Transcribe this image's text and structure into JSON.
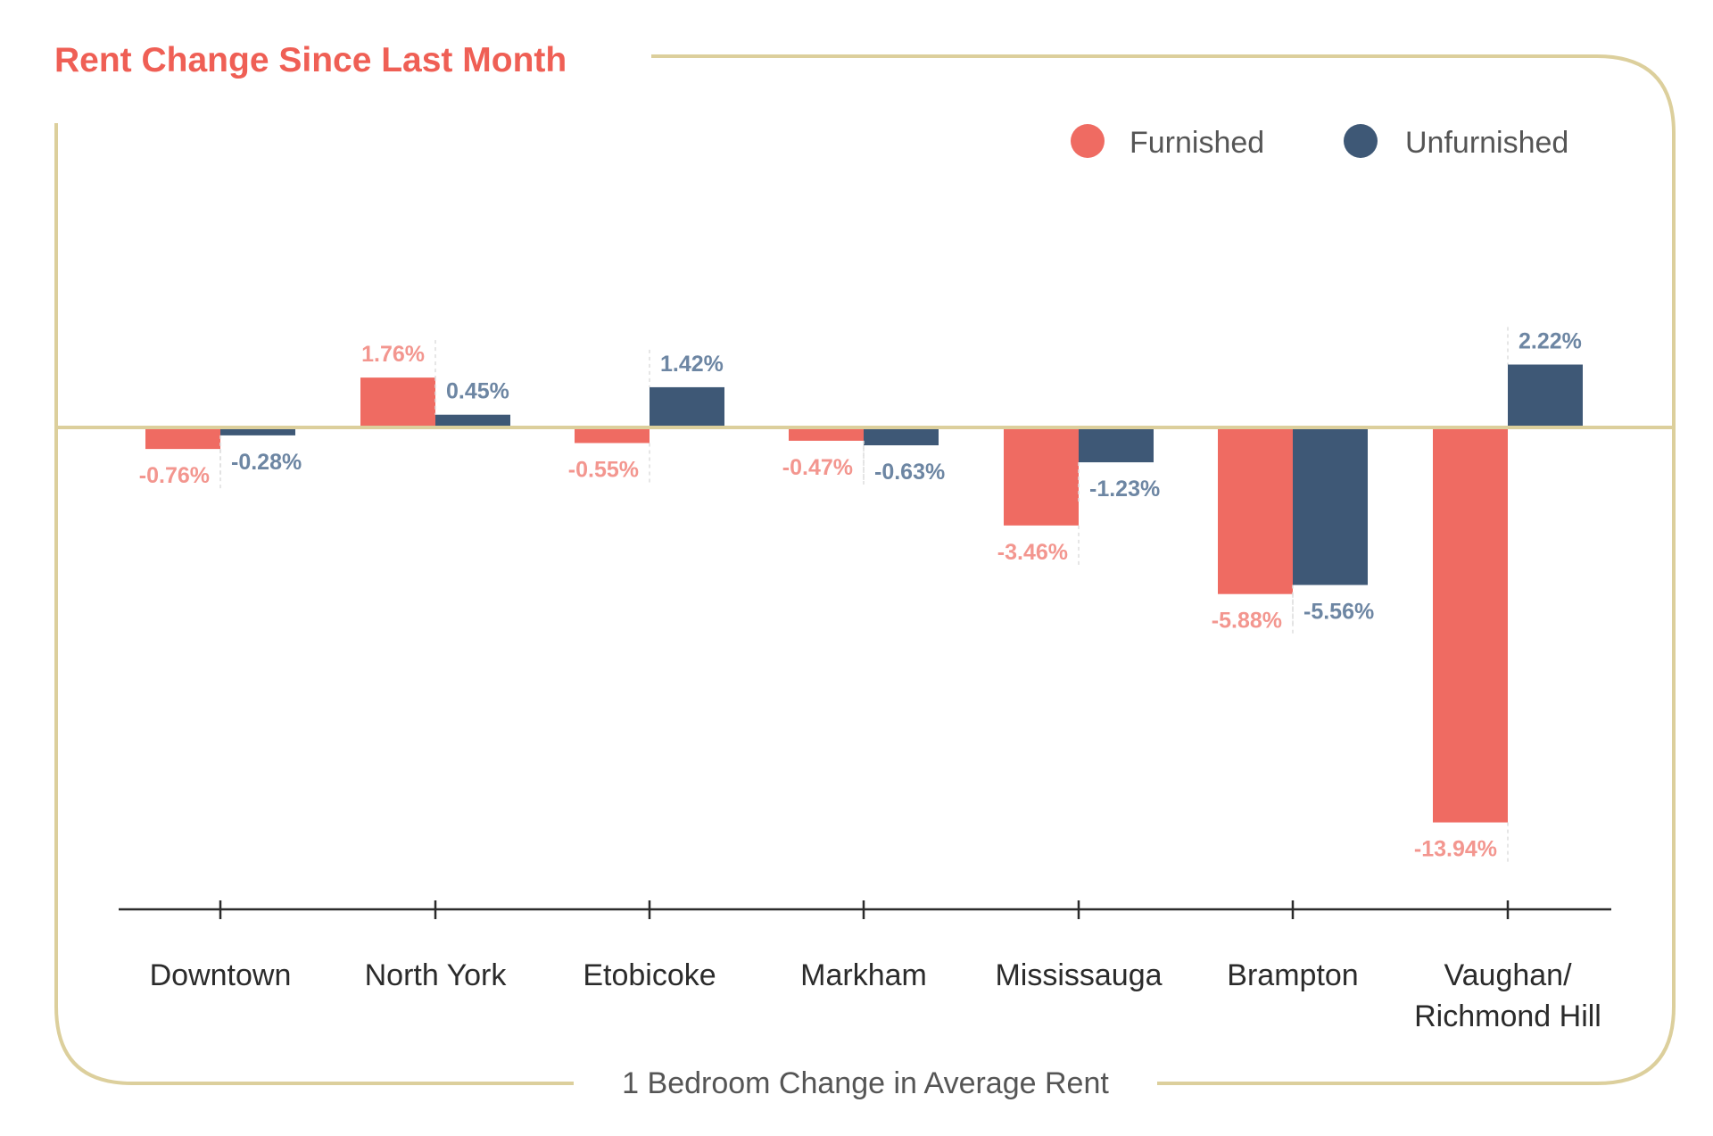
{
  "colors": {
    "furnished": "#ef6b62",
    "unfurnished": "#3e5876",
    "furnished_label": "#f3968f",
    "unfurnished_label": "#6d86a3",
    "frame": "#dccf9c",
    "title": "#ef5f55",
    "axis": "#2b2b2b"
  },
  "chart_data": {
    "type": "bar",
    "title": "Rent Change Since Last Month",
    "xlabel": "1 Bedroom Change in Average Rent",
    "ylabel": "",
    "legend_position": "top-right",
    "grid": false,
    "ylim": [
      -14.7,
      5.0
    ],
    "categories": [
      [
        "Downtown"
      ],
      [
        "North York"
      ],
      [
        "Etobicoke"
      ],
      [
        "Markham"
      ],
      [
        "Mississauga"
      ],
      [
        "Brampton"
      ],
      [
        "Vaughan/",
        "Richmond Hill"
      ]
    ],
    "series": [
      {
        "name": "Furnished",
        "values": [
          -0.76,
          1.76,
          -0.55,
          -0.47,
          -3.46,
          -5.88,
          -13.94
        ],
        "labels": [
          "-0.76%",
          "1.76%",
          "-0.55%",
          "-0.47%",
          "-3.46%",
          "-5.88%",
          "-13.94%"
        ]
      },
      {
        "name": "Unfurnished",
        "values": [
          -0.28,
          0.45,
          1.42,
          -0.63,
          -1.23,
          -5.56,
          2.22
        ],
        "labels": [
          "-0.28%",
          "0.45%",
          "1.42%",
          "-0.63%",
          "-1.23%",
          "-5.56%",
          "2.22%"
        ]
      }
    ]
  }
}
